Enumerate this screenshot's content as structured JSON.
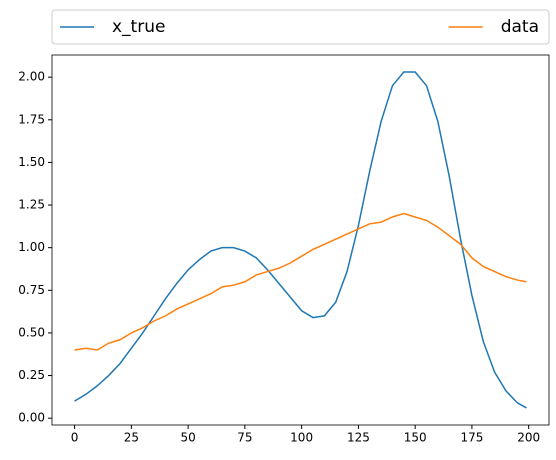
{
  "chart_data": {
    "type": "line",
    "x": [
      0,
      5,
      10,
      15,
      20,
      25,
      30,
      35,
      40,
      45,
      50,
      55,
      60,
      65,
      70,
      75,
      80,
      85,
      90,
      95,
      100,
      105,
      110,
      115,
      120,
      125,
      130,
      135,
      140,
      145,
      150,
      155,
      160,
      165,
      170,
      175,
      180,
      185,
      190,
      195,
      199
    ],
    "series": [
      {
        "name": "x_true",
        "color": "#1f77b4",
        "values": [
          0.1,
          0.14,
          0.19,
          0.25,
          0.32,
          0.41,
          0.5,
          0.6,
          0.7,
          0.79,
          0.87,
          0.93,
          0.98,
          1.0,
          1.0,
          0.98,
          0.94,
          0.87,
          0.79,
          0.71,
          0.63,
          0.59,
          0.6,
          0.68,
          0.86,
          1.13,
          1.45,
          1.74,
          1.95,
          2.03,
          2.03,
          1.95,
          1.74,
          1.42,
          1.05,
          0.72,
          0.45,
          0.27,
          0.16,
          0.09,
          0.06
        ]
      },
      {
        "name": "data",
        "color": "#ff7f0e",
        "values": [
          0.4,
          0.41,
          0.4,
          0.44,
          0.46,
          0.5,
          0.53,
          0.57,
          0.6,
          0.64,
          0.67,
          0.7,
          0.73,
          0.77,
          0.78,
          0.8,
          0.84,
          0.86,
          0.88,
          0.91,
          0.95,
          0.99,
          1.02,
          1.05,
          1.08,
          1.11,
          1.14,
          1.15,
          1.18,
          1.2,
          1.18,
          1.16,
          1.12,
          1.07,
          1.02,
          0.94,
          0.89,
          0.86,
          0.83,
          0.81,
          0.8
        ]
      }
    ],
    "xlim": [
      -9.95,
      208.95
    ],
    "xticks": [
      0,
      25,
      50,
      75,
      100,
      125,
      150,
      175,
      200
    ],
    "ylim": [
      -0.04,
      2.13
    ],
    "yticks": [
      {
        "value": 0,
        "label": "0.00"
      },
      {
        "value": 0.25,
        "label": "0.25"
      },
      {
        "value": 0.5,
        "label": "0.50"
      },
      {
        "value": 0.75,
        "label": "0.75"
      },
      {
        "value": 1,
        "label": "1.00"
      },
      {
        "value": 1.25,
        "label": "1.25"
      },
      {
        "value": 1.5,
        "label": "1.50"
      },
      {
        "value": 1.75,
        "label": "1.75"
      },
      {
        "value": 2,
        "label": "2.00"
      }
    ],
    "legend": "above",
    "grid": false
  }
}
